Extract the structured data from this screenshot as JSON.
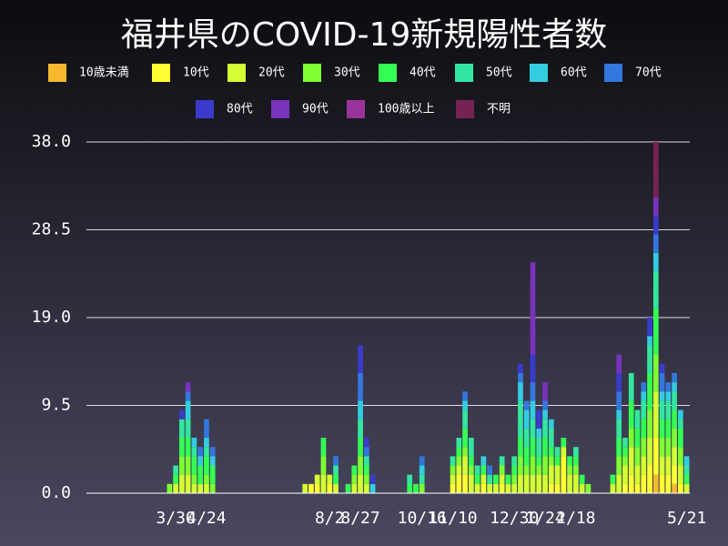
{
  "chart_data": {
    "type": "bar",
    "title": "福井県のCOVID-19新規陽性者数",
    "categories": [
      null,
      null,
      null,
      null,
      null,
      null,
      null,
      null,
      null,
      null,
      null,
      null,
      null,
      null,
      "3/30",
      null,
      null,
      null,
      null,
      "4/24",
      null,
      null,
      null,
      null,
      null,
      null,
      null,
      null,
      null,
      null,
      null,
      null,
      null,
      null,
      null,
      null,
      null,
      null,
      null,
      "8/2",
      null,
      null,
      null,
      null,
      "8/27",
      null,
      null,
      null,
      null,
      null,
      null,
      null,
      null,
      null,
      "10/16",
      null,
      null,
      null,
      null,
      "11/10",
      null,
      null,
      null,
      null,
      null,
      null,
      null,
      null,
      null,
      "12/30",
      null,
      null,
      null,
      null,
      "1/24",
      null,
      null,
      null,
      null,
      "2/18",
      null,
      null,
      null,
      null,
      null,
      null,
      null,
      null,
      null,
      null,
      null,
      null,
      null,
      null,
      null,
      null,
      null,
      "5/21"
    ],
    "ylim": [
      0,
      38
    ],
    "yticks": [
      {
        "value": 0,
        "label": "0.0"
      },
      9.5,
      {
        "value": 19,
        "label": "19.0"
      },
      28.5,
      {
        "value": 38,
        "label": "38.0"
      }
    ],
    "grid": true,
    "series": [
      {
        "name": "10歳未満",
        "color": "#f5b82e",
        "values": [
          0,
          0,
          0,
          0,
          0,
          0,
          0,
          0,
          0,
          0,
          0,
          0,
          0,
          0,
          0,
          0,
          0,
          0,
          0,
          0,
          0,
          0,
          0,
          0,
          0,
          0,
          0,
          0,
          0,
          0,
          0,
          0,
          0,
          0,
          0,
          0,
          0,
          0,
          0,
          0,
          0,
          0,
          0,
          0,
          0,
          0,
          0,
          0,
          0,
          0,
          0,
          0,
          0,
          0,
          0,
          0,
          0,
          0,
          0,
          0,
          0,
          0,
          0,
          0,
          0,
          0,
          0,
          0,
          0,
          0,
          0,
          0,
          0,
          0,
          0,
          0,
          0,
          0,
          0,
          0,
          0,
          0,
          0,
          0,
          0,
          0,
          0,
          0,
          0,
          0,
          0,
          0,
          2,
          0,
          0,
          1,
          0,
          0
        ]
      },
      {
        "name": "10代",
        "color": "#ffff33",
        "values": [
          0,
          0,
          0,
          0,
          0,
          0,
          0,
          0,
          0,
          0,
          0,
          0,
          0,
          0,
          0,
          0,
          0,
          0,
          0,
          0,
          0,
          0,
          0,
          0,
          0,
          0,
          0,
          0,
          0,
          0,
          0,
          0,
          0,
          0,
          0,
          0,
          1,
          1,
          0,
          1,
          0,
          0,
          0,
          0,
          0,
          0,
          0,
          0,
          0,
          0,
          0,
          0,
          0,
          0,
          0,
          0,
          0,
          0,
          0,
          1,
          2,
          2,
          0,
          0,
          1,
          0,
          0,
          1,
          0,
          0,
          0,
          0,
          0,
          0,
          0,
          1,
          1,
          4,
          0,
          0,
          0,
          0,
          0,
          0,
          0,
          0,
          0,
          1,
          2,
          1,
          2,
          3,
          4,
          2,
          2,
          2,
          1,
          0
        ]
      },
      {
        "name": "20代",
        "color": "#d4ff33",
        "values": [
          0,
          0,
          0,
          0,
          0,
          0,
          0,
          0,
          0,
          0,
          0,
          0,
          0,
          0,
          1,
          2,
          2,
          1,
          1,
          1,
          0,
          0,
          0,
          0,
          0,
          0,
          0,
          0,
          0,
          0,
          0,
          0,
          0,
          0,
          0,
          1,
          0,
          1,
          2,
          1,
          1,
          0,
          0,
          1,
          2,
          1,
          0,
          0,
          0,
          0,
          0,
          0,
          0,
          0,
          0,
          0,
          0,
          0,
          0,
          1,
          1,
          2,
          2,
          1,
          1,
          1,
          1,
          1,
          1,
          1,
          2,
          2,
          2,
          2,
          2,
          2,
          2,
          1,
          2,
          2,
          1,
          0,
          0,
          0,
          0,
          1,
          2,
          2,
          3,
          2,
          2,
          3,
          5,
          2,
          2,
          2,
          2,
          1
        ]
      },
      {
        "name": "30代",
        "color": "#7fff33",
        "values": [
          0,
          0,
          0,
          0,
          0,
          0,
          0,
          0,
          0,
          0,
          0,
          0,
          0,
          1,
          0,
          2,
          2,
          1,
          0,
          1,
          1,
          0,
          0,
          0,
          0,
          0,
          0,
          0,
          0,
          0,
          0,
          0,
          0,
          0,
          0,
          0,
          0,
          0,
          2,
          0,
          0,
          0,
          0,
          1,
          2,
          1,
          0,
          0,
          0,
          0,
          0,
          0,
          0,
          0,
          1,
          0,
          0,
          0,
          0,
          1,
          1,
          1,
          1,
          0,
          0,
          0,
          0,
          1,
          0,
          1,
          2,
          1,
          2,
          1,
          2,
          1,
          0,
          0,
          1,
          1,
          0,
          1,
          0,
          0,
          0,
          0,
          2,
          1,
          2,
          2,
          2,
          3,
          4,
          2,
          2,
          2,
          2,
          0
        ]
      },
      {
        "name": "40代",
        "color": "#33ff55",
        "values": [
          0,
          0,
          0,
          0,
          0,
          0,
          0,
          0,
          0,
          0,
          0,
          0,
          0,
          0,
          1,
          2,
          2,
          2,
          2,
          2,
          2,
          0,
          0,
          0,
          0,
          0,
          0,
          0,
          0,
          0,
          0,
          0,
          0,
          0,
          0,
          0,
          0,
          0,
          2,
          0,
          1,
          0,
          1,
          1,
          2,
          1,
          0,
          0,
          0,
          0,
          0,
          0,
          1,
          1,
          0,
          0,
          0,
          0,
          0,
          0,
          1,
          2,
          1,
          1,
          1,
          0,
          1,
          0,
          1,
          1,
          2,
          2,
          2,
          1,
          2,
          1,
          1,
          1,
          1,
          1,
          1,
          0,
          0,
          0,
          0,
          1,
          2,
          1,
          3,
          2,
          2,
          4,
          5,
          2,
          2,
          2,
          2,
          1
        ]
      },
      {
        "name": "50代",
        "color": "#33e6a0",
        "values": [
          0,
          0,
          0,
          0,
          0,
          0,
          0,
          0,
          0,
          0,
          0,
          0,
          0,
          0,
          1,
          2,
          2,
          1,
          0,
          1,
          0,
          0,
          0,
          0,
          0,
          0,
          0,
          0,
          0,
          0,
          0,
          0,
          0,
          0,
          0,
          0,
          0,
          0,
          0,
          0,
          1,
          0,
          0,
          0,
          2,
          1,
          0,
          0,
          0,
          0,
          0,
          0,
          1,
          0,
          1,
          0,
          0,
          0,
          0,
          1,
          1,
          2,
          2,
          1,
          0,
          1,
          0,
          1,
          0,
          1,
          4,
          2,
          2,
          2,
          2,
          2,
          1,
          0,
          0,
          1,
          0,
          0,
          0,
          0,
          0,
          0,
          2,
          1,
          3,
          2,
          2,
          3,
          4,
          2,
          2,
          2,
          1,
          1
        ]
      },
      {
        "name": "60代",
        "color": "#33cce0",
        "values": [
          0,
          0,
          0,
          0,
          0,
          0,
          0,
          0,
          0,
          0,
          0,
          0,
          0,
          0,
          0,
          0,
          2,
          1,
          1,
          1,
          1,
          0,
          0,
          0,
          0,
          0,
          0,
          0,
          0,
          0,
          0,
          0,
          0,
          0,
          0,
          0,
          0,
          0,
          0,
          0,
          0,
          0,
          0,
          0,
          2,
          0,
          1,
          0,
          0,
          0,
          0,
          0,
          0,
          0,
          1,
          0,
          0,
          0,
          0,
          0,
          0,
          1,
          0,
          0,
          1,
          0,
          0,
          0,
          0,
          0,
          2,
          2,
          2,
          1,
          1,
          1,
          0,
          0,
          0,
          0,
          0,
          0,
          0,
          0,
          0,
          0,
          1,
          0,
          0,
          0,
          1,
          1,
          2,
          1,
          1,
          1,
          1,
          1
        ]
      },
      {
        "name": "70代",
        "color": "#3377dd",
        "values": [
          0,
          0,
          0,
          0,
          0,
          0,
          0,
          0,
          0,
          0,
          0,
          0,
          0,
          0,
          0,
          0,
          1,
          0,
          1,
          2,
          1,
          0,
          0,
          0,
          0,
          0,
          0,
          0,
          0,
          0,
          0,
          0,
          0,
          0,
          0,
          0,
          0,
          0,
          0,
          0,
          1,
          0,
          0,
          0,
          3,
          1,
          0,
          0,
          0,
          0,
          0,
          0,
          0,
          0,
          1,
          0,
          0,
          0,
          0,
          0,
          0,
          1,
          0,
          0,
          0,
          1,
          0,
          0,
          0,
          0,
          1,
          1,
          2,
          0,
          1,
          0,
          0,
          0,
          0,
          0,
          0,
          0,
          0,
          0,
          0,
          0,
          2,
          0,
          0,
          0,
          1,
          0,
          2,
          2,
          1,
          1,
          0,
          0
        ]
      },
      {
        "name": "80代",
        "color": "#3a3acc",
        "values": [
          0,
          0,
          0,
          0,
          0,
          0,
          0,
          0,
          0,
          0,
          0,
          0,
          0,
          0,
          0,
          1,
          0,
          0,
          0,
          0,
          0,
          0,
          0,
          0,
          0,
          0,
          0,
          0,
          0,
          0,
          0,
          0,
          0,
          0,
          0,
          0,
          0,
          0,
          0,
          0,
          0,
          0,
          0,
          0,
          3,
          1,
          1,
          0,
          0,
          0,
          0,
          0,
          0,
          0,
          0,
          0,
          0,
          0,
          0,
          0,
          0,
          0,
          0,
          0,
          0,
          0,
          0,
          0,
          0,
          0,
          1,
          0,
          3,
          2,
          0,
          0,
          0,
          0,
          0,
          0,
          0,
          0,
          0,
          0,
          0,
          0,
          2,
          0,
          0,
          0,
          0,
          2,
          2,
          1,
          0,
          0,
          0,
          0
        ]
      },
      {
        "name": "90代",
        "color": "#7733bb",
        "values": [
          0,
          0,
          0,
          0,
          0,
          0,
          0,
          0,
          0,
          0,
          0,
          0,
          0,
          0,
          0,
          0,
          1,
          0,
          0,
          0,
          0,
          0,
          0,
          0,
          0,
          0,
          0,
          0,
          0,
          0,
          0,
          0,
          0,
          0,
          0,
          0,
          0,
          0,
          0,
          0,
          0,
          0,
          0,
          0,
          0,
          0,
          0,
          0,
          0,
          0,
          0,
          0,
          0,
          0,
          0,
          0,
          0,
          0,
          0,
          0,
          0,
          0,
          0,
          0,
          0,
          0,
          0,
          0,
          0,
          0,
          0,
          0,
          10,
          0,
          2,
          0,
          0,
          0,
          0,
          0,
          0,
          0,
          0,
          0,
          0,
          0,
          2,
          0,
          0,
          0,
          0,
          0,
          2,
          0,
          0,
          0,
          0,
          0
        ]
      },
      {
        "name": "100歳以上",
        "color": "#993399",
        "values": [
          0,
          0,
          0,
          0,
          0,
          0,
          0,
          0,
          0,
          0,
          0,
          0,
          0,
          0,
          0,
          0,
          0,
          0,
          0,
          0,
          0,
          0,
          0,
          0,
          0,
          0,
          0,
          0,
          0,
          0,
          0,
          0,
          0,
          0,
          0,
          0,
          0,
          0,
          0,
          0,
          0,
          0,
          0,
          0,
          0,
          0,
          0,
          0,
          0,
          0,
          0,
          0,
          0,
          0,
          0,
          0,
          0,
          0,
          0,
          0,
          0,
          0,
          0,
          0,
          0,
          0,
          0,
          0,
          0,
          0,
          0,
          0,
          0,
          0,
          0,
          0,
          0,
          0,
          0,
          0,
          0,
          0,
          0,
          0,
          0,
          0,
          0,
          0,
          0,
          0,
          0,
          0,
          0,
          0,
          0,
          0,
          0,
          0
        ]
      },
      {
        "name": "不明",
        "color": "#772255",
        "values": [
          0,
          0,
          0,
          0,
          0,
          0,
          0,
          0,
          0,
          0,
          0,
          0,
          0,
          0,
          0,
          0,
          0,
          0,
          0,
          0,
          0,
          0,
          0,
          0,
          0,
          0,
          0,
          0,
          0,
          0,
          0,
          0,
          0,
          0,
          0,
          0,
          0,
          0,
          0,
          0,
          0,
          0,
          0,
          0,
          0,
          0,
          0,
          0,
          0,
          0,
          0,
          0,
          0,
          0,
          0,
          0,
          0,
          0,
          0,
          0,
          0,
          0,
          0,
          0,
          0,
          0,
          0,
          0,
          0,
          0,
          0,
          0,
          0,
          0,
          0,
          0,
          0,
          0,
          0,
          0,
          0,
          0,
          0,
          0,
          0,
          0,
          0,
          0,
          0,
          0,
          0,
          0,
          6,
          0,
          0,
          0,
          0,
          0
        ]
      }
    ]
  }
}
